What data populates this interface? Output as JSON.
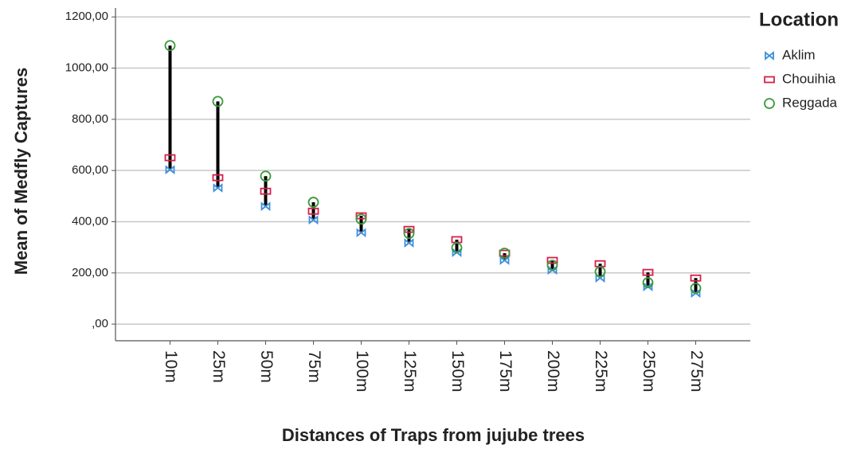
{
  "chart_data": {
    "type": "highlow",
    "x_label": "Distances of Traps from jujube trees",
    "y_label": "Mean of Medfly Captures",
    "legend_title": "Location",
    "categories": [
      "10m",
      "25m",
      "50m",
      "75m",
      "100m",
      "125m",
      "150m",
      "175m",
      "200m",
      "225m",
      "250m",
      "275m"
    ],
    "series": [
      {
        "name": "Aklim",
        "color": "#3d8fd9",
        "marker": "bowtie",
        "values": [
          603,
          532,
          460,
          407,
          357,
          317,
          280,
          249,
          211,
          180,
          146,
          121
        ]
      },
      {
        "name": "Chouihia",
        "color": "#d6204a",
        "marker": "square",
        "values": [
          650,
          572,
          519,
          441,
          423,
          370,
          330,
          277,
          249,
          236,
          202,
          180
        ]
      },
      {
        "name": "Reggada",
        "color": "#3a9a3a",
        "marker": "circle",
        "values": [
          1088,
          870,
          578,
          476,
          410,
          354,
          298,
          277,
          230,
          205,
          162,
          140
        ]
      }
    ],
    "ylim": [
      -65,
      1235
    ],
    "yticks": [
      {
        "value": 0,
        "label": ",00"
      },
      {
        "value": 200,
        "label": "200,00"
      },
      {
        "value": 400,
        "label": "400,00"
      },
      {
        "value": 600,
        "label": "600,00"
      },
      {
        "value": 800,
        "label": "800,00"
      },
      {
        "value": 1000,
        "label": "1000,00"
      },
      {
        "value": 1200,
        "label": "1200,00"
      }
    ],
    "grid": true,
    "legend": "right"
  }
}
